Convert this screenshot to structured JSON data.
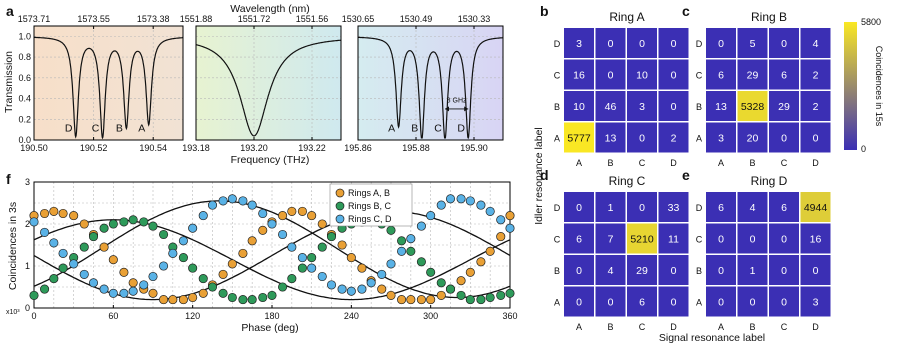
{
  "colors": {
    "heat_low": "#3b2fb4",
    "heat_high": "#fae823",
    "orange": "#e9a035",
    "green": "#2e9a5a",
    "blue": "#59b2e6",
    "bg_a_left": "#f7dfc9",
    "bg_a_right": "#f1e2d4",
    "bg_b_left": "#e7f3d1",
    "bg_b_right": "#cfe9ef",
    "bg_c_left": "#d5ecf0",
    "bg_c_right": "#d8d4f4"
  },
  "panel_labels": {
    "a": "a",
    "b": "b",
    "c": "c",
    "d": "d",
    "e": "e",
    "f": "f"
  },
  "chart_data": [
    {
      "id": "a",
      "type": "line",
      "top_axis_label": "Wavelength (nm)",
      "xlabel": "Frequency (THz)",
      "ylabel": "Transmission",
      "ylim": [
        0,
        1.1
      ],
      "y_ticks": [
        "0.0",
        "0.2",
        "0.4",
        "0.6",
        "0.8",
        "1.0"
      ],
      "subpanels": [
        {
          "xlim": [
            190.5,
            190.55
          ],
          "x_ticks": [
            "190.50",
            "190.52",
            "190.54"
          ],
          "top_ticks": [
            "1573.71",
            "1573.55",
            "1573.38"
          ],
          "dips": [
            {
              "x": 190.514,
              "depth": 0.95,
              "label": "D"
            },
            {
              "x": 190.523,
              "depth": 0.95,
              "label": "C"
            },
            {
              "x": 190.531,
              "depth": 0.85,
              "label": "B"
            },
            {
              "x": 190.5385,
              "depth": 0.83,
              "label": "A"
            }
          ],
          "dip_width": 0.0011
        },
        {
          "xlim": [
            193.18,
            193.23
          ],
          "x_ticks": [
            "193.18",
            "193.20",
            "193.22"
          ],
          "top_ticks": [
            "1551.88",
            "1551.72",
            "1551.56"
          ],
          "dips": [
            {
              "x": 193.2,
              "depth": 0.96,
              "label": ""
            }
          ],
          "dip_width": 0.006
        },
        {
          "xlim": [
            195.86,
            195.91
          ],
          "x_ticks": [
            "195.86",
            "195.88",
            "195.90"
          ],
          "top_ticks": [
            "1530.65",
            "1530.49",
            "1530.33"
          ],
          "dips": [
            {
              "x": 195.874,
              "depth": 0.85,
              "label": "A"
            },
            {
              "x": 195.882,
              "depth": 0.96,
              "label": "B"
            },
            {
              "x": 195.89,
              "depth": 0.96,
              "label": "C"
            },
            {
              "x": 195.898,
              "depth": 0.96,
              "label": "D"
            }
          ],
          "dip_width": 0.0011,
          "annotation": "8 GHz"
        }
      ]
    },
    {
      "id": "b-e",
      "type": "heatmap",
      "xlabel": "Signal resonance label",
      "ylabel": "Idler resonance label",
      "categories": [
        "A",
        "B",
        "C",
        "D"
      ],
      "colorbar": {
        "min": 0,
        "max": 5800,
        "label": "Coincidences in 15s",
        "tick_labels": [
          "0",
          "5800"
        ]
      },
      "matrices": [
        {
          "title": "Ring A",
          "rows": {
            "D": [
              3,
              0,
              0,
              0
            ],
            "C": [
              16,
              0,
              10,
              0
            ],
            "B": [
              10,
              46,
              3,
              0
            ],
            "A": [
              5777,
              13,
              0,
              2
            ]
          }
        },
        {
          "title": "Ring B",
          "rows": {
            "D": [
              0,
              5,
              0,
              4
            ],
            "C": [
              6,
              29,
              6,
              2
            ],
            "B": [
              13,
              5328,
              29,
              2
            ],
            "A": [
              3,
              20,
              0,
              0
            ]
          }
        },
        {
          "title": "Ring C",
          "rows": {
            "D": [
              0,
              1,
              0,
              33
            ],
            "C": [
              6,
              7,
              5210,
              11
            ],
            "B": [
              0,
              4,
              29,
              0
            ],
            "A": [
              0,
              0,
              6,
              0
            ]
          }
        },
        {
          "title": "Ring D",
          "rows": {
            "D": [
              6,
              4,
              6,
              4944
            ],
            "C": [
              0,
              0,
              0,
              16
            ],
            "B": [
              0,
              1,
              0,
              0
            ],
            "A": [
              0,
              0,
              0,
              3
            ]
          }
        }
      ]
    },
    {
      "id": "f",
      "type": "scatter",
      "xlabel": "Phase (deg)",
      "ylabel": "Coincidences in 3s",
      "y_exponent": "x10³",
      "xlim": [
        0,
        360
      ],
      "ylim": [
        0,
        3
      ],
      "x_ticks": [
        "0",
        "60",
        "120",
        "180",
        "240",
        "300",
        "360"
      ],
      "y_ticks": [
        "0",
        "1",
        "2",
        "3"
      ],
      "legend": [
        "Rings A, B",
        "Rings B, C",
        "Rings C, D"
      ],
      "series": [
        {
          "name": "Rings A, B",
          "fit": {
            "mean": 1.25,
            "amp": 1.05,
            "phase_deg": 270
          },
          "points": [
            [
              0,
              2.2
            ],
            [
              8,
              2.25
            ],
            [
              15,
              2.3
            ],
            [
              22,
              2.25
            ],
            [
              30,
              2.2
            ],
            [
              38,
              2.0
            ],
            [
              45,
              1.75
            ],
            [
              53,
              1.45
            ],
            [
              60,
              1.15
            ],
            [
              68,
              0.85
            ],
            [
              75,
              0.6
            ],
            [
              83,
              0.45
            ],
            [
              90,
              0.35
            ],
            [
              98,
              0.2
            ],
            [
              105,
              0.2
            ],
            [
              113,
              0.2
            ],
            [
              120,
              0.25
            ],
            [
              128,
              0.35
            ],
            [
              135,
              0.55
            ],
            [
              143,
              0.8
            ],
            [
              150,
              1.05
            ],
            [
              158,
              1.3
            ],
            [
              165,
              1.6
            ],
            [
              173,
              1.85
            ],
            [
              180,
              2.05
            ],
            [
              188,
              2.2
            ],
            [
              195,
              2.3
            ],
            [
              203,
              2.3
            ],
            [
              210,
              2.2
            ],
            [
              218,
              2.0
            ],
            [
              225,
              1.75
            ],
            [
              233,
              1.5
            ],
            [
              240,
              1.2
            ],
            [
              248,
              0.95
            ],
            [
              255,
              0.65
            ],
            [
              263,
              0.45
            ],
            [
              270,
              0.3
            ],
            [
              278,
              0.2
            ],
            [
              285,
              0.2
            ],
            [
              293,
              0.2
            ],
            [
              300,
              0.2
            ],
            [
              308,
              0.3
            ],
            [
              315,
              0.45
            ],
            [
              323,
              0.65
            ],
            [
              330,
              0.85
            ],
            [
              338,
              1.1
            ],
            [
              345,
              1.35
            ],
            [
              353,
              1.7
            ],
            [
              360,
              2.2
            ]
          ]
        },
        {
          "name": "Rings B, C",
          "fit": {
            "mean": 1.15,
            "amp": 0.95,
            "phase_deg": 60
          },
          "points": [
            [
              0,
              0.3
            ],
            [
              8,
              0.45
            ],
            [
              15,
              0.7
            ],
            [
              22,
              0.95
            ],
            [
              30,
              1.2
            ],
            [
              38,
              1.45
            ],
            [
              45,
              1.7
            ],
            [
              53,
              1.9
            ],
            [
              60,
              2.0
            ],
            [
              68,
              2.05
            ],
            [
              75,
              2.1
            ],
            [
              83,
              2.05
            ],
            [
              90,
              1.95
            ],
            [
              98,
              1.75
            ],
            [
              105,
              1.45
            ],
            [
              113,
              1.2
            ],
            [
              120,
              0.95
            ],
            [
              128,
              0.7
            ],
            [
              135,
              0.5
            ],
            [
              143,
              0.35
            ],
            [
              150,
              0.25
            ],
            [
              158,
              0.2
            ],
            [
              165,
              0.2
            ],
            [
              173,
              0.25
            ],
            [
              180,
              0.3
            ],
            [
              188,
              0.5
            ],
            [
              195,
              0.7
            ],
            [
              203,
              0.95
            ],
            [
              210,
              1.2
            ],
            [
              218,
              1.45
            ],
            [
              225,
              1.7
            ],
            [
              233,
              1.9
            ],
            [
              240,
              2.0
            ],
            [
              248,
              2.05
            ],
            [
              255,
              2.1
            ],
            [
              263,
              2.0
            ],
            [
              270,
              1.85
            ],
            [
              278,
              1.6
            ],
            [
              285,
              1.35
            ],
            [
              293,
              1.1
            ],
            [
              300,
              0.85
            ],
            [
              308,
              0.6
            ],
            [
              315,
              0.45
            ],
            [
              323,
              0.3
            ],
            [
              330,
              0.2
            ],
            [
              338,
              0.2
            ],
            [
              345,
              0.25
            ],
            [
              353,
              0.3
            ],
            [
              360,
              0.35
            ]
          ]
        },
        {
          "name": "Rings C, D",
          "fit": {
            "mean": 1.4,
            "amp": 1.15,
            "phase_deg": 140
          },
          "points": [
            [
              0,
              2.05
            ],
            [
              8,
              1.8
            ],
            [
              15,
              1.55
            ],
            [
              22,
              1.3
            ],
            [
              30,
              1.05
            ],
            [
              38,
              0.8
            ],
            [
              45,
              0.6
            ],
            [
              53,
              0.45
            ],
            [
              60,
              0.35
            ],
            [
              68,
              0.35
            ],
            [
              75,
              0.4
            ],
            [
              83,
              0.55
            ],
            [
              90,
              0.75
            ],
            [
              98,
              1.0
            ],
            [
              105,
              1.3
            ],
            [
              113,
              1.6
            ],
            [
              120,
              1.9
            ],
            [
              128,
              2.2
            ],
            [
              135,
              2.45
            ],
            [
              143,
              2.55
            ],
            [
              150,
              2.6
            ],
            [
              158,
              2.55
            ],
            [
              165,
              2.45
            ],
            [
              173,
              2.25
            ],
            [
              180,
              2.0
            ],
            [
              188,
              1.75
            ],
            [
              195,
              1.45
            ],
            [
              203,
              1.2
            ],
            [
              210,
              0.95
            ],
            [
              218,
              0.75
            ],
            [
              225,
              0.55
            ],
            [
              233,
              0.45
            ],
            [
              240,
              0.4
            ],
            [
              248,
              0.45
            ],
            [
              255,
              0.6
            ],
            [
              263,
              0.8
            ],
            [
              270,
              1.05
            ],
            [
              278,
              1.35
            ],
            [
              285,
              1.65
            ],
            [
              293,
              1.95
            ],
            [
              300,
              2.2
            ],
            [
              308,
              2.45
            ],
            [
              315,
              2.6
            ],
            [
              323,
              2.6
            ],
            [
              330,
              2.55
            ],
            [
              338,
              2.45
            ],
            [
              345,
              2.3
            ],
            [
              353,
              2.1
            ],
            [
              360,
              1.9
            ]
          ]
        }
      ]
    }
  ]
}
